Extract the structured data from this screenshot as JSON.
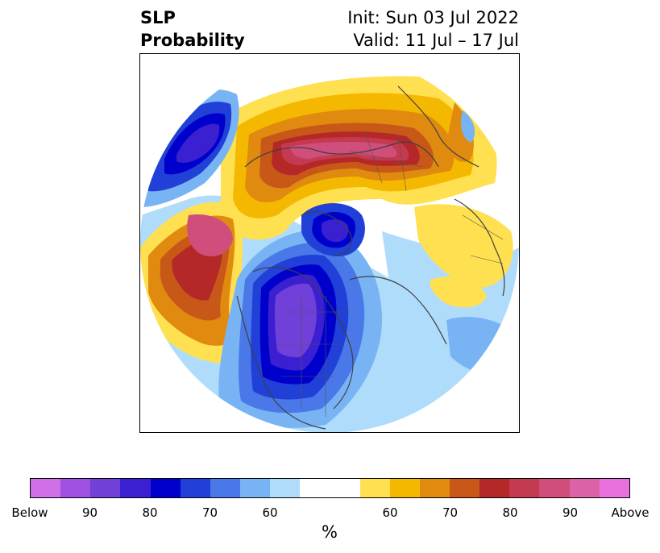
{
  "header": {
    "title_line1": "SLP",
    "title_line2": "Probability",
    "init": "Init: Sun 03 Jul 2022",
    "valid": "Valid: 11 Jul – 17 Jul"
  },
  "colorbar": {
    "colors": [
      "#d070e8",
      "#a050e0",
      "#7040d8",
      "#3a20d0",
      "#0000cc",
      "#2040d8",
      "#4a78e8",
      "#78b4f4",
      "#b0dcfc",
      "#ffffff",
      "#ffffff",
      "#ffe050",
      "#f4b800",
      "#e08a10",
      "#c85818",
      "#b42828",
      "#c43a50",
      "#d04e7c",
      "#dc62a8",
      "#e870dc"
    ],
    "labels": [
      "Below",
      "90",
      "80",
      "70",
      "60",
      "60",
      "70",
      "80",
      "90",
      "Above"
    ],
    "units": "%"
  }
}
